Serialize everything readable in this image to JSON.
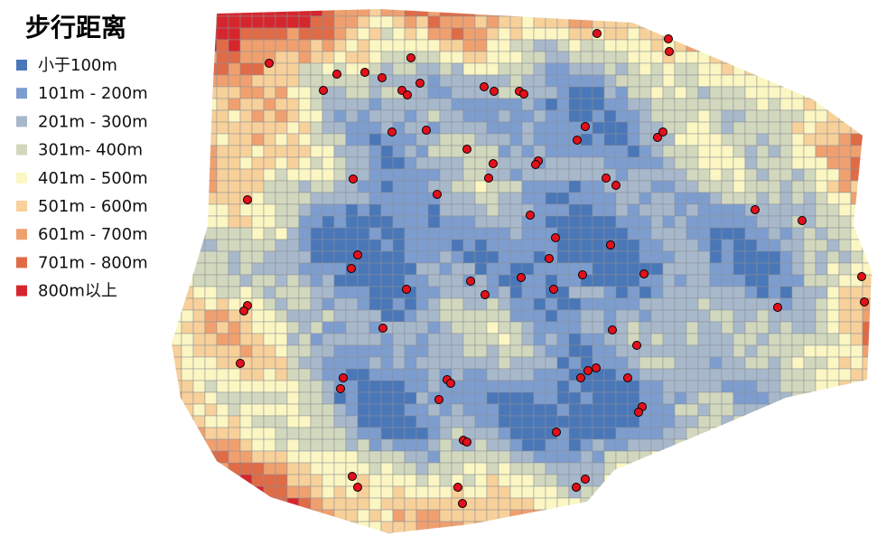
{
  "map": {
    "title": "步行距离",
    "legend": {
      "items": [
        {
          "label": "小于100m",
          "color": "#4a77b8"
        },
        {
          "label": "101m - 200m",
          "color": "#7d9dcf"
        },
        {
          "label": "201m - 300m",
          "color": "#a8b8cb"
        },
        {
          "label": "301m- 400m",
          "color": "#d2d8bd"
        },
        {
          "label": "401m - 500m",
          "color": "#fbf6c2"
        },
        {
          "label": "501m - 600m",
          "color": "#f7d09a"
        },
        {
          "label": "601m - 700m",
          "color": "#f0a06f"
        },
        {
          "label": "701m - 800m",
          "color": "#e06b47"
        },
        {
          "label": "800m以上",
          "color": "#d6262d"
        }
      ]
    }
  }
}
